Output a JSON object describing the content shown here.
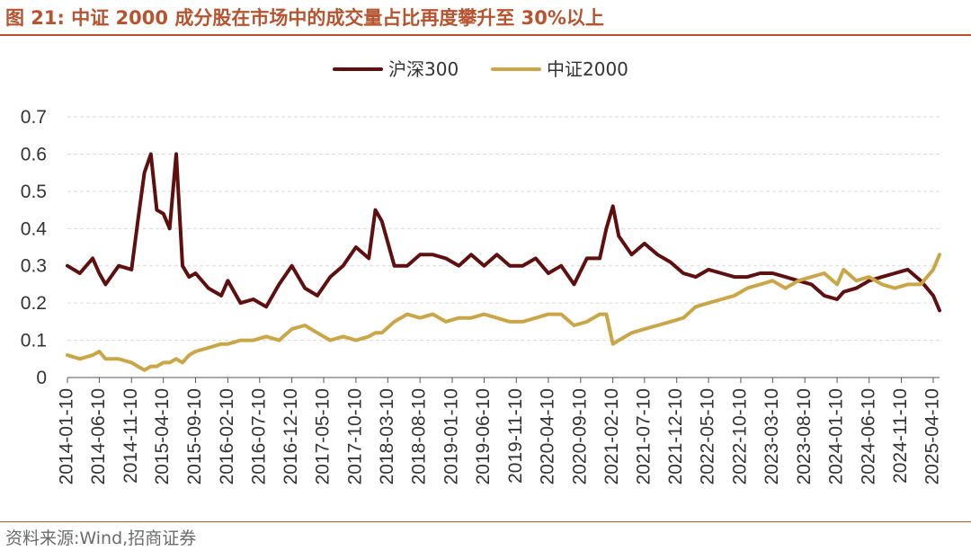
{
  "header": {
    "figure_label": "图 21:",
    "title": "中证 2000 成分股在市场中的成交量占比再度攀升至 30%以上"
  },
  "footer": {
    "source": "资料来源:Wind,招商证券"
  },
  "chart_data": {
    "type": "line",
    "title": "中证 2000 成分股在市场中的成交量占比再度攀升至 30%以上",
    "xlabel": "",
    "ylabel": "",
    "ylim": [
      0,
      0.7
    ],
    "yticks": [
      "0",
      "0.1",
      "0.2",
      "0.3",
      "0.4",
      "0.5",
      "0.6",
      "0.7"
    ],
    "grid": true,
    "legend_position": "top-center",
    "xticks": [
      "2014-01-10",
      "2014-06-10",
      "2014-11-10",
      "2015-04-10",
      "2015-09-10",
      "2016-02-10",
      "2016-07-10",
      "2016-12-10",
      "2017-05-10",
      "2017-10-10",
      "2018-03-10",
      "2018-08-10",
      "2019-01-10",
      "2019-06-10",
      "2019-11-10",
      "2020-04-10",
      "2020-09-10",
      "2021-02-10",
      "2021-07-10",
      "2021-12-10",
      "2022-05-10",
      "2022-10-10",
      "2023-03-10",
      "2023-08-10",
      "2024-01-10",
      "2024-06-10",
      "2024-11-10",
      "2025-04-10"
    ],
    "x": [
      "2014-01-10",
      "2014-03-10",
      "2014-05-10",
      "2014-06-10",
      "2014-07-10",
      "2014-09-10",
      "2014-11-10",
      "2014-12-10",
      "2015-01-10",
      "2015-02-10",
      "2015-03-10",
      "2015-04-10",
      "2015-05-10",
      "2015-06-10",
      "2015-07-10",
      "2015-08-10",
      "2015-09-10",
      "2015-11-10",
      "2016-01-10",
      "2016-02-10",
      "2016-04-10",
      "2016-06-10",
      "2016-08-10",
      "2016-10-10",
      "2016-12-10",
      "2017-02-10",
      "2017-04-10",
      "2017-06-10",
      "2017-08-10",
      "2017-10-10",
      "2017-12-10",
      "2018-01-10",
      "2018-02-10",
      "2018-04-10",
      "2018-06-10",
      "2018-08-10",
      "2018-10-10",
      "2018-12-10",
      "2019-02-10",
      "2019-04-10",
      "2019-06-10",
      "2019-08-10",
      "2019-10-10",
      "2019-12-10",
      "2020-02-10",
      "2020-04-10",
      "2020-06-10",
      "2020-08-10",
      "2020-10-10",
      "2020-12-10",
      "2021-01-10",
      "2021-02-10",
      "2021-03-10",
      "2021-05-10",
      "2021-07-10",
      "2021-09-10",
      "2021-11-10",
      "2022-01-10",
      "2022-03-10",
      "2022-05-10",
      "2022-07-10",
      "2022-09-10",
      "2022-11-10",
      "2023-01-10",
      "2023-03-10",
      "2023-05-10",
      "2023-07-10",
      "2023-09-10",
      "2023-11-10",
      "2024-01-10",
      "2024-02-10",
      "2024-04-10",
      "2024-06-10",
      "2024-08-10",
      "2024-10-10",
      "2024-12-10",
      "2025-02-10",
      "2025-04-10",
      "2025-05-10"
    ],
    "series": [
      {
        "name": "沪深300",
        "color": "#5e0f0f",
        "values": [
          0.3,
          0.28,
          0.32,
          0.28,
          0.25,
          0.3,
          0.29,
          0.42,
          0.55,
          0.6,
          0.45,
          0.44,
          0.4,
          0.6,
          0.3,
          0.27,
          0.28,
          0.24,
          0.22,
          0.26,
          0.2,
          0.21,
          0.19,
          0.25,
          0.3,
          0.24,
          0.22,
          0.27,
          0.3,
          0.35,
          0.32,
          0.45,
          0.42,
          0.3,
          0.3,
          0.33,
          0.33,
          0.32,
          0.3,
          0.33,
          0.3,
          0.33,
          0.3,
          0.3,
          0.32,
          0.28,
          0.3,
          0.25,
          0.32,
          0.32,
          0.4,
          0.46,
          0.38,
          0.33,
          0.36,
          0.33,
          0.31,
          0.28,
          0.27,
          0.29,
          0.28,
          0.27,
          0.27,
          0.28,
          0.28,
          0.27,
          0.26,
          0.25,
          0.22,
          0.21,
          0.23,
          0.24,
          0.26,
          0.27,
          0.28,
          0.29,
          0.26,
          0.22,
          0.18
        ]
      },
      {
        "name": "中证2000",
        "color": "#c9a647",
        "values": [
          0.06,
          0.05,
          0.06,
          0.07,
          0.05,
          0.05,
          0.04,
          0.03,
          0.02,
          0.03,
          0.03,
          0.04,
          0.04,
          0.05,
          0.04,
          0.06,
          0.07,
          0.08,
          0.09,
          0.09,
          0.1,
          0.1,
          0.11,
          0.1,
          0.13,
          0.14,
          0.12,
          0.1,
          0.11,
          0.1,
          0.11,
          0.12,
          0.12,
          0.15,
          0.17,
          0.16,
          0.17,
          0.15,
          0.16,
          0.16,
          0.17,
          0.16,
          0.15,
          0.15,
          0.16,
          0.17,
          0.17,
          0.14,
          0.15,
          0.17,
          0.17,
          0.09,
          0.1,
          0.12,
          0.13,
          0.14,
          0.15,
          0.16,
          0.19,
          0.2,
          0.21,
          0.22,
          0.24,
          0.25,
          0.26,
          0.24,
          0.26,
          0.27,
          0.28,
          0.25,
          0.29,
          0.26,
          0.27,
          0.25,
          0.24,
          0.25,
          0.25,
          0.29,
          0.33
        ]
      }
    ]
  }
}
